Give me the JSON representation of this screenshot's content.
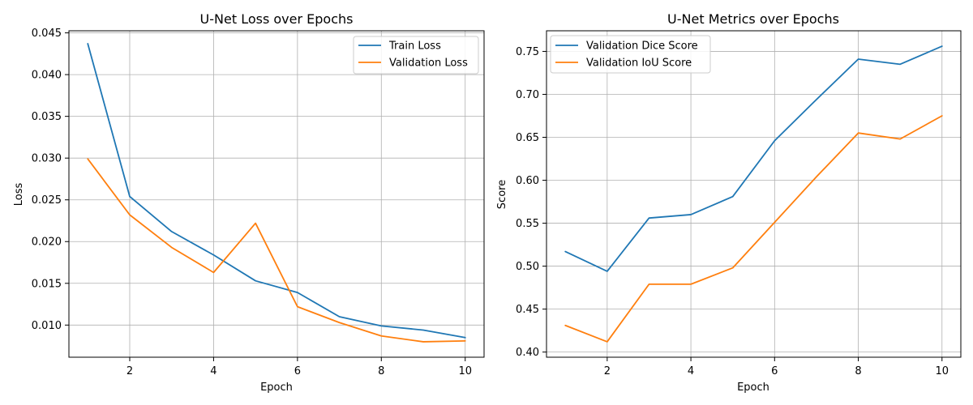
{
  "chart_data": [
    {
      "type": "line",
      "title": "U-Net Loss over Epochs",
      "xlabel": "Epoch",
      "ylabel": "Loss",
      "x": [
        1,
        2,
        3,
        4,
        5,
        6,
        7,
        8,
        9,
        10
      ],
      "xlim": [
        0.55,
        10.45
      ],
      "ylim": [
        0.00615,
        0.04525
      ],
      "xticks": [
        2,
        4,
        6,
        8,
        10
      ],
      "yticks": [
        0.01,
        0.015,
        0.02,
        0.025,
        0.03,
        0.035,
        0.04,
        0.045
      ],
      "ytick_labels": [
        "0.010",
        "0.015",
        "0.020",
        "0.025",
        "0.030",
        "0.035",
        "0.040",
        "0.045"
      ],
      "grid": true,
      "legend_position": "top-right",
      "series": [
        {
          "name": "Train Loss",
          "color": "#1f77b4",
          "values": [
            0.0437,
            0.0254,
            0.0212,
            0.0184,
            0.0153,
            0.0139,
            0.011,
            0.0099,
            0.0094,
            0.0085
          ]
        },
        {
          "name": "Validation Loss",
          "color": "#ff7f0e",
          "values": [
            0.0299,
            0.0232,
            0.0193,
            0.0163,
            0.0222,
            0.0122,
            0.0103,
            0.0087,
            0.008,
            0.0081
          ]
        }
      ]
    },
    {
      "type": "line",
      "title": "U-Net Metrics over Epochs",
      "xlabel": "Epoch",
      "ylabel": "Score",
      "x": [
        1,
        2,
        3,
        4,
        5,
        6,
        7,
        8,
        9,
        10
      ],
      "xlim": [
        0.55,
        10.45
      ],
      "ylim": [
        0.394,
        0.774
      ],
      "xticks": [
        2,
        4,
        6,
        8,
        10
      ],
      "yticks": [
        0.4,
        0.45,
        0.5,
        0.55,
        0.6,
        0.65,
        0.7,
        0.75
      ],
      "ytick_labels": [
        "0.40",
        "0.45",
        "0.50",
        "0.55",
        "0.60",
        "0.65",
        "0.70",
        "0.75"
      ],
      "grid": true,
      "legend_position": "top-left",
      "series": [
        {
          "name": "Validation Dice Score",
          "color": "#1f77b4",
          "values": [
            0.517,
            0.494,
            0.556,
            0.56,
            0.581,
            0.646,
            0.694,
            0.741,
            0.735,
            0.756
          ]
        },
        {
          "name": "Validation IoU Score",
          "color": "#ff7f0e",
          "values": [
            0.431,
            0.412,
            0.479,
            0.479,
            0.498,
            0.551,
            0.604,
            0.655,
            0.648,
            0.675
          ]
        }
      ]
    }
  ]
}
